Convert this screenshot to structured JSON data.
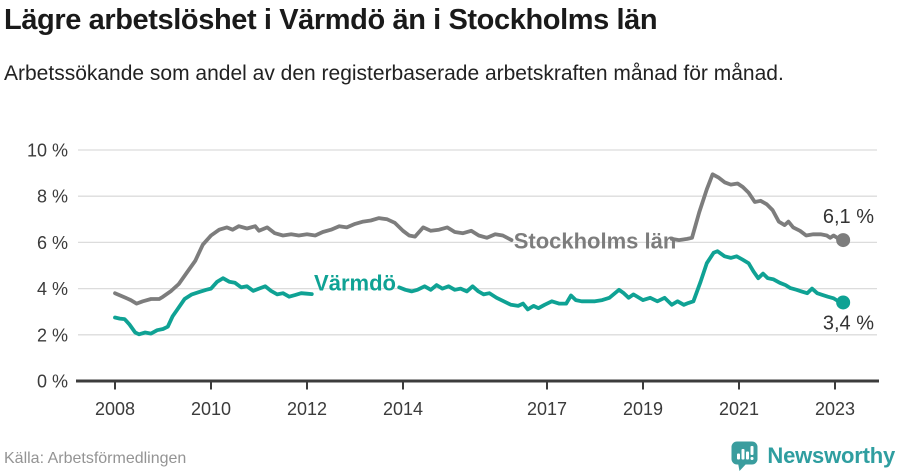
{
  "header": {
    "title": "Lägre arbetslöshet i Värmdö än i Stockholms län",
    "subtitle": "Arbetssökande som andel av den registerbaserade arbetskraften månad för månad."
  },
  "footer": {
    "source": "Källa: Arbetsförmedlingen",
    "brand": "Newsworthy",
    "brand_icon": "newsworthy-bar-chart-bubble-icon"
  },
  "colors": {
    "title": "#1a1a1a",
    "subtitle": "#222222",
    "axis_text": "#3b3b3b",
    "axis_line": "#3c3c3c",
    "gridline": "#dcdcdc",
    "end_label_text": "#333333",
    "series_stockholm": "#7d7d7d",
    "series_varmdo": "#0fa294",
    "brand_teal": "#2f9ea0",
    "source_text": "#949494"
  },
  "chart_data": {
    "type": "line",
    "title": "Lägre arbetslöshet i Värmdö än i Stockholms län",
    "subtitle": "Arbetssökande som andel av den registerbaserade arbetskraften månad för månad.",
    "unit": "%",
    "xlim": [
      2007.9,
      2023.95
    ],
    "ylim": [
      0,
      10
    ],
    "grid": "horizontal",
    "legend_position": "inline-labels",
    "x_ticks": [
      {
        "label": "2008",
        "year": 2008
      },
      {
        "label": "2010",
        "year": 2010
      },
      {
        "label": "2012",
        "year": 2012
      },
      {
        "label": "2014",
        "year": 2014
      },
      {
        "label": "2017",
        "year": 2017
      },
      {
        "label": "2019",
        "year": 2019
      },
      {
        "label": "2021",
        "year": 2021
      },
      {
        "label": "2023",
        "year": 2023
      }
    ],
    "y_ticks": [
      {
        "label": "0 %",
        "value": 0
      },
      {
        "label": "2 %",
        "value": 2
      },
      {
        "label": "4 %",
        "value": 4
      },
      {
        "label": "6 %",
        "value": 6
      },
      {
        "label": "8 %",
        "value": 8
      },
      {
        "label": "10 %",
        "value": 10
      }
    ],
    "series": [
      {
        "name": "Stockholms län",
        "color": "#7d7d7d",
        "end_label": "6,1 %",
        "end_value": 6.1,
        "end_label_position": "above",
        "inline_label": {
          "text": "Stockholms län",
          "x": 2018.0,
          "y": 6.05
        },
        "segments": [
          [
            [
              2008.0,
              3.8
            ],
            [
              2008.17,
              3.65
            ],
            [
              2008.33,
              3.5
            ],
            [
              2008.45,
              3.35
            ],
            [
              2008.58,
              3.45
            ],
            [
              2008.75,
              3.55
            ],
            [
              2008.92,
              3.55
            ],
            [
              2009.0,
              3.65
            ],
            [
              2009.17,
              3.9
            ],
            [
              2009.33,
              4.2
            ],
            [
              2009.5,
              4.7
            ],
            [
              2009.67,
              5.2
            ],
            [
              2009.83,
              5.9
            ],
            [
              2010.0,
              6.3
            ],
            [
              2010.17,
              6.55
            ],
            [
              2010.33,
              6.65
            ],
            [
              2010.45,
              6.55
            ],
            [
              2010.58,
              6.7
            ],
            [
              2010.75,
              6.6
            ],
            [
              2010.92,
              6.7
            ],
            [
              2011.0,
              6.5
            ],
            [
              2011.17,
              6.65
            ],
            [
              2011.33,
              6.4
            ],
            [
              2011.5,
              6.3
            ],
            [
              2011.67,
              6.35
            ],
            [
              2011.83,
              6.3
            ],
            [
              2012.0,
              6.35
            ],
            [
              2012.17,
              6.3
            ],
            [
              2012.33,
              6.45
            ],
            [
              2012.5,
              6.55
            ],
            [
              2012.67,
              6.7
            ],
            [
              2012.83,
              6.65
            ],
            [
              2013.0,
              6.8
            ],
            [
              2013.17,
              6.9
            ],
            [
              2013.33,
              6.95
            ],
            [
              2013.5,
              7.05
            ],
            [
              2013.67,
              7.0
            ],
            [
              2013.83,
              6.85
            ],
            [
              2014.0,
              6.5
            ],
            [
              2014.13,
              6.3
            ],
            [
              2014.25,
              6.25
            ],
            [
              2014.42,
              6.65
            ],
            [
              2014.58,
              6.5
            ],
            [
              2014.75,
              6.55
            ],
            [
              2014.92,
              6.65
            ],
            [
              2015.08,
              6.45
            ],
            [
              2015.25,
              6.4
            ],
            [
              2015.42,
              6.5
            ],
            [
              2015.58,
              6.3
            ],
            [
              2015.75,
              6.2
            ],
            [
              2015.92,
              6.35
            ],
            [
              2016.08,
              6.3
            ],
            [
              2016.26,
              6.1
            ]
          ],
          [
            [
              2019.6,
              6.15
            ],
            [
              2019.75,
              6.1
            ],
            [
              2019.92,
              6.15
            ],
            [
              2020.02,
              6.2
            ],
            [
              2020.17,
              7.3
            ],
            [
              2020.33,
              8.3
            ],
            [
              2020.45,
              8.95
            ],
            [
              2020.58,
              8.8
            ],
            [
              2020.7,
              8.6
            ],
            [
              2020.83,
              8.5
            ],
            [
              2020.97,
              8.55
            ],
            [
              2021.08,
              8.4
            ],
            [
              2021.2,
              8.15
            ],
            [
              2021.33,
              7.75
            ],
            [
              2021.45,
              7.8
            ],
            [
              2021.58,
              7.65
            ],
            [
              2021.7,
              7.4
            ],
            [
              2021.83,
              6.9
            ],
            [
              2021.95,
              6.75
            ],
            [
              2022.03,
              6.9
            ],
            [
              2022.13,
              6.65
            ],
            [
              2022.27,
              6.5
            ],
            [
              2022.4,
              6.3
            ],
            [
              2022.55,
              6.35
            ],
            [
              2022.7,
              6.35
            ],
            [
              2022.83,
              6.3
            ],
            [
              2022.9,
              6.2
            ],
            [
              2022.97,
              6.3
            ],
            [
              2023.08,
              6.15
            ],
            [
              2023.17,
              6.1
            ]
          ]
        ]
      },
      {
        "name": "Värmdö",
        "color": "#0fa294",
        "end_label": "3,4 %",
        "end_value": 3.4,
        "end_label_position": "below",
        "inline_label": {
          "text": "Värmdö",
          "x": 2013.0,
          "y": 4.25
        },
        "segments": [
          [
            [
              2008.0,
              2.75
            ],
            [
              2008.1,
              2.7
            ],
            [
              2008.2,
              2.68
            ],
            [
              2008.3,
              2.45
            ],
            [
              2008.42,
              2.1
            ],
            [
              2008.5,
              2.02
            ],
            [
              2008.63,
              2.1
            ],
            [
              2008.75,
              2.05
            ],
            [
              2008.88,
              2.2
            ],
            [
              2009.0,
              2.25
            ],
            [
              2009.1,
              2.35
            ],
            [
              2009.2,
              2.8
            ],
            [
              2009.3,
              3.1
            ],
            [
              2009.45,
              3.55
            ],
            [
              2009.6,
              3.75
            ],
            [
              2009.75,
              3.85
            ],
            [
              2009.9,
              3.95
            ],
            [
              2010.0,
              4.0
            ],
            [
              2010.13,
              4.3
            ],
            [
              2010.25,
              4.45
            ],
            [
              2010.38,
              4.3
            ],
            [
              2010.5,
              4.25
            ],
            [
              2010.63,
              4.05
            ],
            [
              2010.75,
              4.1
            ],
            [
              2010.88,
              3.9
            ],
            [
              2011.0,
              4.0
            ],
            [
              2011.13,
              4.1
            ],
            [
              2011.25,
              3.9
            ],
            [
              2011.38,
              3.75
            ],
            [
              2011.5,
              3.8
            ],
            [
              2011.63,
              3.65
            ],
            [
              2011.75,
              3.72
            ],
            [
              2011.88,
              3.8
            ],
            [
              2012.0,
              3.78
            ],
            [
              2012.1,
              3.76
            ]
          ],
          [
            [
              2013.92,
              4.05
            ],
            [
              2014.05,
              3.95
            ],
            [
              2014.18,
              3.88
            ],
            [
              2014.3,
              3.95
            ],
            [
              2014.45,
              4.1
            ],
            [
              2014.58,
              3.95
            ],
            [
              2014.7,
              4.15
            ],
            [
              2014.82,
              4.0
            ],
            [
              2014.95,
              4.1
            ],
            [
              2015.08,
              3.95
            ],
            [
              2015.2,
              4.0
            ],
            [
              2015.33,
              3.88
            ],
            [
              2015.45,
              4.1
            ],
            [
              2015.57,
              3.88
            ],
            [
              2015.68,
              3.75
            ],
            [
              2015.8,
              3.8
            ],
            [
              2015.95,
              3.6
            ],
            [
              2016.1,
              3.45
            ],
            [
              2016.25,
              3.3
            ],
            [
              2016.4,
              3.25
            ],
            [
              2016.5,
              3.35
            ],
            [
              2016.6,
              3.1
            ],
            [
              2016.72,
              3.25
            ],
            [
              2016.82,
              3.15
            ],
            [
              2016.95,
              3.3
            ],
            [
              2017.1,
              3.45
            ],
            [
              2017.25,
              3.35
            ],
            [
              2017.4,
              3.35
            ],
            [
              2017.5,
              3.7
            ],
            [
              2017.6,
              3.5
            ],
            [
              2017.72,
              3.45
            ],
            [
              2017.85,
              3.45
            ],
            [
              2018.0,
              3.45
            ],
            [
              2018.15,
              3.5
            ],
            [
              2018.3,
              3.6
            ],
            [
              2018.5,
              3.95
            ],
            [
              2018.6,
              3.8
            ],
            [
              2018.7,
              3.6
            ],
            [
              2018.8,
              3.75
            ],
            [
              2019.0,
              3.5
            ],
            [
              2019.15,
              3.6
            ],
            [
              2019.3,
              3.45
            ],
            [
              2019.45,
              3.6
            ],
            [
              2019.6,
              3.3
            ],
            [
              2019.72,
              3.45
            ],
            [
              2019.85,
              3.3
            ],
            [
              2019.95,
              3.38
            ],
            [
              2020.05,
              3.45
            ],
            [
              2020.2,
              4.3
            ],
            [
              2020.33,
              5.1
            ],
            [
              2020.47,
              5.55
            ],
            [
              2020.55,
              5.62
            ],
            [
              2020.7,
              5.4
            ],
            [
              2020.83,
              5.33
            ],
            [
              2020.95,
              5.4
            ],
            [
              2021.07,
              5.26
            ],
            [
              2021.2,
              5.1
            ],
            [
              2021.3,
              4.75
            ],
            [
              2021.4,
              4.45
            ],
            [
              2021.5,
              4.65
            ],
            [
              2021.6,
              4.45
            ],
            [
              2021.72,
              4.4
            ],
            [
              2021.85,
              4.25
            ],
            [
              2021.97,
              4.15
            ],
            [
              2022.07,
              4.02
            ],
            [
              2022.2,
              3.95
            ],
            [
              2022.3,
              3.88
            ],
            [
              2022.42,
              3.8
            ],
            [
              2022.52,
              4.0
            ],
            [
              2022.63,
              3.8
            ],
            [
              2022.73,
              3.73
            ],
            [
              2022.85,
              3.65
            ],
            [
              2022.97,
              3.58
            ],
            [
              2023.07,
              3.45
            ],
            [
              2023.17,
              3.4
            ]
          ]
        ]
      }
    ]
  }
}
